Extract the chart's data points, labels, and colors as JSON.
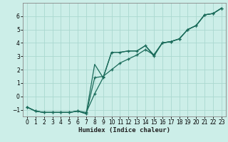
{
  "xlabel": "Humidex (Indice chaleur)",
  "bg_color": "#cceee8",
  "line_color": "#1a6b5a",
  "grid_color": "#aad8d0",
  "xlim": [
    -0.5,
    23.5
  ],
  "ylim": [
    -1.5,
    7.0
  ],
  "yticks": [
    -1,
    0,
    1,
    2,
    3,
    4,
    5,
    6
  ],
  "xticks": [
    0,
    1,
    2,
    3,
    4,
    5,
    6,
    7,
    8,
    9,
    10,
    11,
    12,
    13,
    14,
    15,
    16,
    17,
    18,
    19,
    20,
    21,
    22,
    23
  ],
  "curve1_x": [
    0,
    1,
    2,
    3,
    4,
    5,
    6,
    7,
    8,
    9,
    10,
    11,
    12,
    13,
    14,
    15,
    16,
    17,
    18,
    19,
    20,
    21,
    22,
    23
  ],
  "curve1_y": [
    -0.8,
    -1.1,
    -1.2,
    -1.2,
    -1.2,
    -1.2,
    -1.1,
    -1.2,
    0.2,
    1.4,
    3.3,
    3.3,
    3.4,
    3.4,
    3.8,
    3.0,
    4.0,
    4.1,
    4.3,
    5.0,
    5.3,
    6.1,
    6.2,
    6.6
  ],
  "curve2_x": [
    0,
    1,
    2,
    3,
    4,
    5,
    6,
    7,
    8,
    9,
    10,
    11,
    12,
    13,
    14,
    15,
    16,
    17,
    18,
    19,
    20,
    21,
    22,
    23
  ],
  "curve2_y": [
    -0.8,
    -1.1,
    -1.2,
    -1.2,
    -1.2,
    -1.2,
    -1.1,
    -1.3,
    1.4,
    1.5,
    2.0,
    2.5,
    2.8,
    3.1,
    3.5,
    3.1,
    4.0,
    4.1,
    4.3,
    5.0,
    5.3,
    6.1,
    6.2,
    6.6
  ],
  "curve3_x": [
    0,
    1,
    2,
    3,
    4,
    5,
    6,
    7,
    8,
    9,
    10,
    11,
    12,
    13,
    14,
    15,
    16,
    17,
    18,
    19,
    20,
    21,
    22,
    23
  ],
  "curve3_y": [
    -0.8,
    -1.1,
    -1.2,
    -1.2,
    -1.2,
    -1.2,
    -1.1,
    -1.3,
    2.4,
    1.4,
    3.3,
    3.3,
    3.4,
    3.4,
    3.8,
    3.1,
    4.0,
    4.1,
    4.3,
    5.0,
    5.3,
    6.1,
    6.2,
    6.6
  ],
  "marker_size": 3.5
}
